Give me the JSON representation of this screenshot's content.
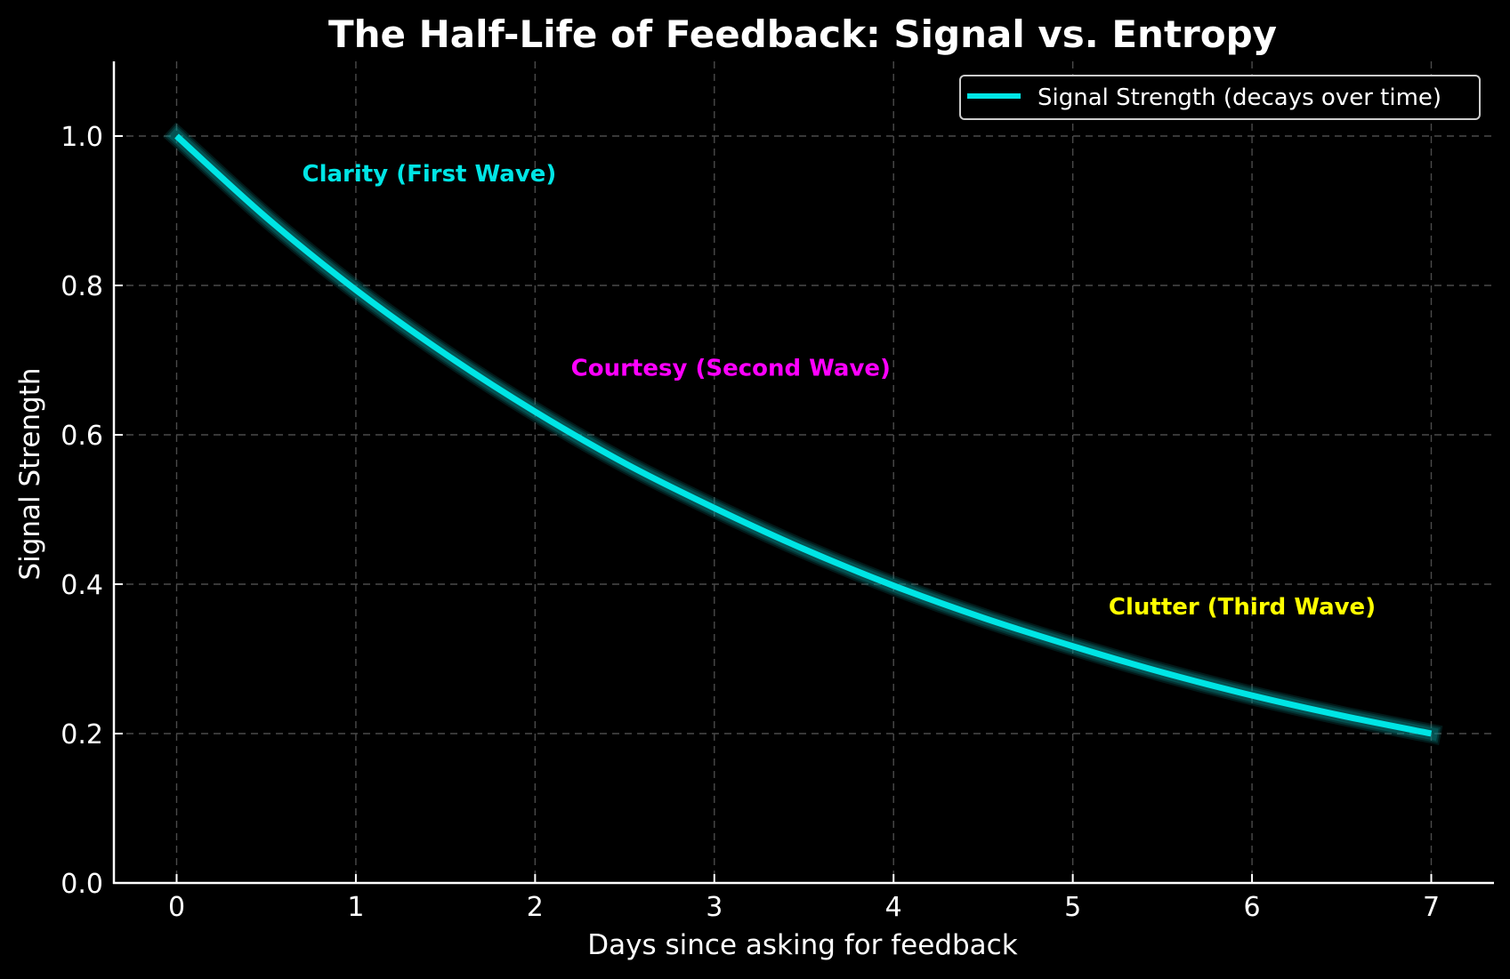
{
  "chart_data": {
    "type": "line",
    "title": "The Half-Life of Feedback: Signal vs. Entropy",
    "xlabel": "Days since asking for feedback",
    "ylabel": "Signal Strength",
    "xlim": [
      -0.35,
      7.35
    ],
    "ylim": [
      0,
      1.1
    ],
    "grid": true,
    "xticks": [
      0,
      1,
      2,
      3,
      4,
      5,
      6,
      7
    ],
    "xtick_labels": [
      "0",
      "1",
      "2",
      "3",
      "4",
      "5",
      "6",
      "7"
    ],
    "yticks": [
      0.0,
      0.2,
      0.4,
      0.6,
      0.8,
      1.0
    ],
    "ytick_labels": [
      "0.0",
      "0.2",
      "0.4",
      "0.6",
      "0.8",
      "1.0"
    ],
    "legend_position": "top-right",
    "series": [
      {
        "name": "Signal Strength (decays over time)",
        "color": "#00e5e5",
        "x": [
          0,
          0.5,
          1,
          1.5,
          2,
          2.5,
          3,
          3.5,
          4,
          4.5,
          5,
          5.5,
          6,
          6.5,
          7
        ],
        "values": [
          1.0,
          0.891,
          0.794,
          0.708,
          0.631,
          0.562,
          0.502,
          0.447,
          0.398,
          0.355,
          0.317,
          0.282,
          0.251,
          0.224,
          0.2
        ]
      }
    ],
    "annotations": [
      {
        "text": "Clarity (First Wave)",
        "x": 0.7,
        "y": 0.95,
        "color": "#00e5e5"
      },
      {
        "text": "Courtesy (Second Wave)",
        "x": 2.2,
        "y": 0.69,
        "color": "#ff00ff"
      },
      {
        "text": "Clutter (Third Wave)",
        "x": 5.2,
        "y": 0.37,
        "color": "#ffff00"
      }
    ]
  },
  "theme": {
    "background": "#000000",
    "foreground": "#ffffff",
    "grid": "#4a4a4a",
    "glow": "#0a8a8a"
  }
}
